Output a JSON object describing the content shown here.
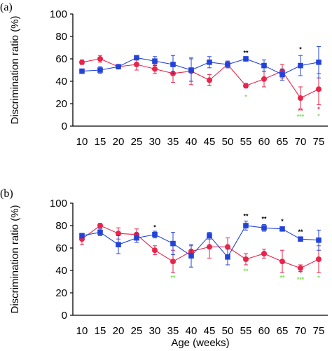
{
  "colors": {
    "blue": "#2343d8",
    "red": "#e8244a",
    "black": "#000000",
    "green": "#7fe05a"
  },
  "chart_data": [
    {
      "type": "line",
      "panel_label": "(a)",
      "ylabel": "Discrimination ratio (%)",
      "xlabel": "",
      "ylim": [
        0,
        100
      ],
      "yticks": [
        "0",
        "20",
        "40",
        "60",
        "80",
        "100"
      ],
      "categories": [
        "10",
        "15",
        "20",
        "25",
        "30",
        "35",
        "40",
        "45",
        "50",
        "55",
        "60",
        "65",
        "70",
        "75"
      ],
      "series": [
        {
          "color": "blue",
          "marker": "square",
          "values": [
            49,
            50,
            53,
            61,
            58,
            55,
            50,
            57,
            55,
            60,
            54,
            46,
            54,
            57
          ],
          "errors": [
            2,
            3,
            2,
            2,
            4,
            8,
            10,
            5,
            3,
            2,
            5,
            5,
            9,
            14
          ]
        },
        {
          "color": "red",
          "marker": "circle",
          "values": [
            57,
            60,
            53,
            55,
            51,
            47,
            49,
            41,
            55,
            36,
            42,
            49,
            25,
            33
          ],
          "errors": [
            2,
            3,
            2,
            5,
            4,
            8,
            12,
            5,
            3,
            2,
            7,
            6,
            10,
            14
          ]
        }
      ],
      "annotations": [
        {
          "x": "55",
          "text": "**",
          "color": "black",
          "y": 63.5
        },
        {
          "x": "70",
          "text": "*",
          "color": "black",
          "y": 66.5
        },
        {
          "x": "55",
          "text": "*",
          "color": "green",
          "y": 24
        },
        {
          "x": "70",
          "text": "**",
          "color": "red",
          "y": 12
        },
        {
          "x": "70",
          "text": "***",
          "color": "green",
          "y": 6.5
        },
        {
          "x": "75",
          "text": "*",
          "color": "red",
          "y": 13
        },
        {
          "x": "75",
          "text": "*",
          "color": "green",
          "y": 7
        }
      ]
    },
    {
      "type": "line",
      "panel_label": "(b)",
      "ylabel": "Discrimination ratio (%)",
      "xlabel": "Age (weeks)",
      "ylim": [
        0,
        100
      ],
      "yticks": [
        "0",
        "20",
        "40",
        "60",
        "80",
        "100"
      ],
      "categories": [
        "10",
        "15",
        "20",
        "25",
        "30",
        "35",
        "40",
        "45",
        "50",
        "55",
        "60",
        "65",
        "70",
        "75"
      ],
      "series": [
        {
          "color": "blue",
          "marker": "square",
          "values": [
            71,
            74,
            63,
            69,
            72,
            64,
            53,
            71,
            52,
            80,
            78,
            77,
            68,
            67
          ],
          "errors": [
            2,
            3,
            8,
            4,
            3,
            10,
            10,
            3,
            7,
            4,
            3,
            2,
            2,
            9
          ]
        },
        {
          "color": "red",
          "marker": "circle",
          "values": [
            68,
            80,
            73,
            72,
            58,
            48,
            57,
            61,
            61,
            50,
            55,
            48,
            42,
            50
          ],
          "errors": [
            5,
            2,
            5,
            5,
            4,
            10,
            5,
            10,
            8,
            5,
            4,
            10,
            3,
            12
          ]
        }
      ],
      "annotations": [
        {
          "x": "30",
          "text": "*",
          "color": "black",
          "y": 76.5
        },
        {
          "x": "55",
          "text": "**",
          "color": "black",
          "y": 86.5
        },
        {
          "x": "60",
          "text": "**",
          "color": "black",
          "y": 84
        },
        {
          "x": "65",
          "text": "*",
          "color": "black",
          "y": 82
        },
        {
          "x": "70",
          "text": "**",
          "color": "black",
          "y": 72.5
        },
        {
          "x": "35",
          "text": "**",
          "color": "green",
          "y": 31.5
        },
        {
          "x": "55",
          "text": "**",
          "color": "green",
          "y": 37.5
        },
        {
          "x": "65",
          "text": "**",
          "color": "green",
          "y": 31.5
        },
        {
          "x": "70",
          "text": "*",
          "color": "red",
          "y": 36
        },
        {
          "x": "70",
          "text": "***",
          "color": "green",
          "y": 30
        },
        {
          "x": "75",
          "text": "*",
          "color": "green",
          "y": 31.5
        }
      ]
    }
  ]
}
